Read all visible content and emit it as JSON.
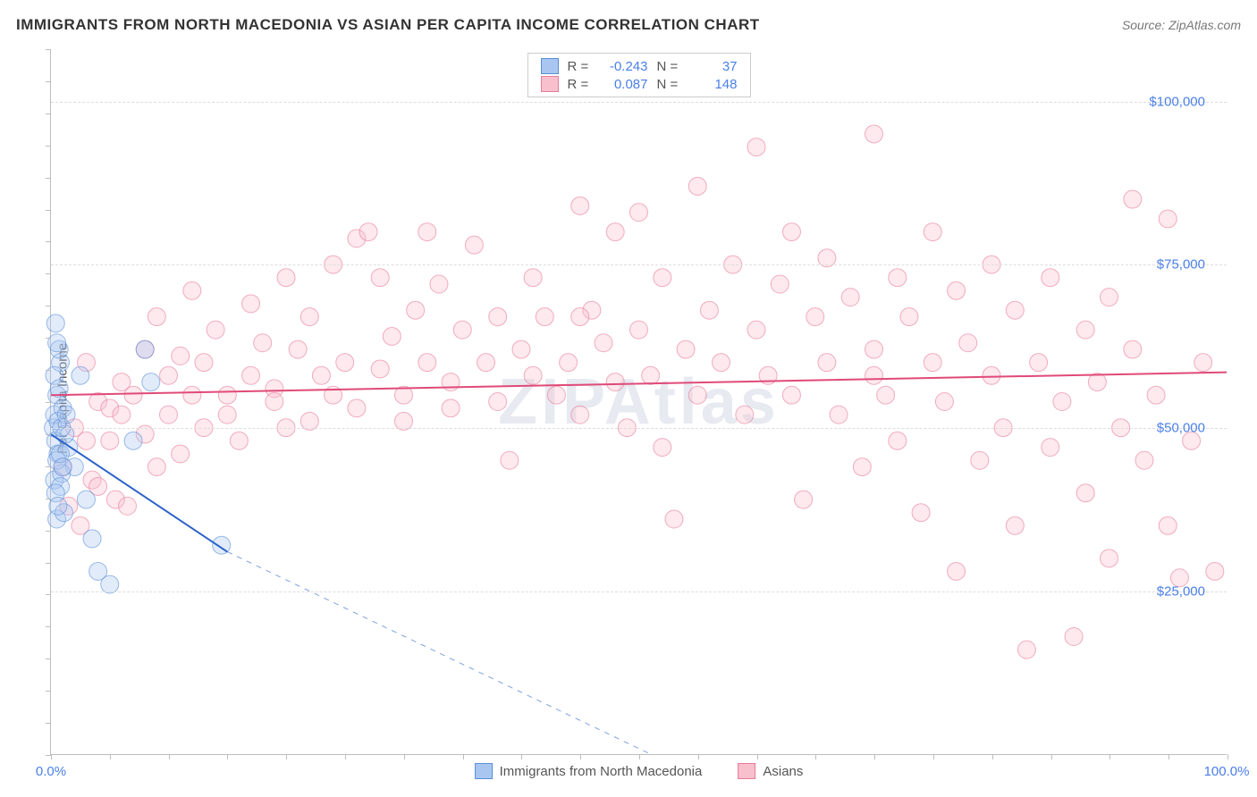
{
  "header": {
    "title": "IMMIGRANTS FROM NORTH MACEDONIA VS ASIAN PER CAPITA INCOME CORRELATION CHART",
    "source_prefix": "Source: ",
    "source_name": "ZipAtlas.com"
  },
  "watermark": "ZIPAtlas",
  "chart": {
    "type": "scatter",
    "ylabel": "Per Capita Income",
    "xlim": [
      0,
      100
    ],
    "ylim": [
      0,
      108000
    ],
    "xtick_labels": {
      "min": "0.0%",
      "max": "100.0%"
    },
    "ytick_positions": [
      25000,
      50000,
      75000,
      100000
    ],
    "ytick_labels": [
      "$25,000",
      "$50,000",
      "$75,000",
      "$100,000"
    ],
    "xtick_minor_count": 20,
    "ytick_minor_count": 22,
    "grid_color": "#dddddd",
    "axis_color": "#bdbdbd",
    "tick_label_color": "#4a7fe8",
    "label_color": "#555555",
    "background_color": "#ffffff",
    "marker_radius": 10,
    "marker_opacity": 0.35,
    "series": [
      {
        "id": "macedonia",
        "label": "Immigrants from North Macedonia",
        "color_fill": "#a8c6f0",
        "color_stroke": "#5a8fd8",
        "R": "-0.243",
        "N": "37",
        "trend": {
          "x1": 0,
          "y1": 49000,
          "x2": 15,
          "y2": 31000,
          "x_dash_to": 51,
          "y_dash_to": 0,
          "stroke": "#2a62c9",
          "width": 2
        },
        "points": [
          [
            0.2,
            50000
          ],
          [
            0.3,
            52000
          ],
          [
            0.4,
            48000
          ],
          [
            0.5,
            55000
          ],
          [
            0.6,
            46000
          ],
          [
            0.8,
            60000
          ],
          [
            0.3,
            42000
          ],
          [
            1.0,
            53000
          ],
          [
            1.5,
            47000
          ],
          [
            0.7,
            62000
          ],
          [
            0.4,
            66000
          ],
          [
            0.5,
            36000
          ],
          [
            2.0,
            44000
          ],
          [
            0.9,
            43000
          ],
          [
            0.6,
            51000
          ],
          [
            1.2,
            49000
          ],
          [
            0.8,
            41000
          ],
          [
            3.0,
            39000
          ],
          [
            0.5,
            45000
          ],
          [
            2.5,
            58000
          ],
          [
            4.0,
            28000
          ],
          [
            5.0,
            26000
          ],
          [
            3.5,
            33000
          ],
          [
            8.5,
            57000
          ],
          [
            8.0,
            62000
          ],
          [
            7.0,
            48000
          ],
          [
            0.3,
            58000
          ],
          [
            0.4,
            40000
          ],
          [
            1.1,
            37000
          ],
          [
            0.7,
            56000
          ],
          [
            0.9,
            50000
          ],
          [
            1.3,
            52000
          ],
          [
            14.5,
            32000
          ],
          [
            0.6,
            38000
          ],
          [
            0.5,
            63000
          ],
          [
            0.8,
            46000
          ],
          [
            1.0,
            44000
          ]
        ]
      },
      {
        "id": "asians",
        "label": "Asians",
        "color_fill": "#f8c0cd",
        "color_stroke": "#e87a9a",
        "R": "0.087",
        "N": "148",
        "trend": {
          "x1": 0,
          "y1": 55000,
          "x2": 100,
          "y2": 58500,
          "stroke": "#e04a78",
          "width": 2
        },
        "points": [
          [
            1,
            44000
          ],
          [
            1.5,
            38000
          ],
          [
            2,
            50000
          ],
          [
            2.5,
            35000
          ],
          [
            3,
            48000
          ],
          [
            3,
            60000
          ],
          [
            3.5,
            42000
          ],
          [
            4,
            54000
          ],
          [
            4,
            41000
          ],
          [
            5,
            53000
          ],
          [
            5,
            48000
          ],
          [
            5.5,
            39000
          ],
          [
            6,
            57000
          ],
          [
            6,
            52000
          ],
          [
            6.5,
            38000
          ],
          [
            7,
            55000
          ],
          [
            8,
            49000
          ],
          [
            8,
            62000
          ],
          [
            9,
            44000
          ],
          [
            9,
            67000
          ],
          [
            10,
            52000
          ],
          [
            10,
            58000
          ],
          [
            11,
            61000
          ],
          [
            11,
            46000
          ],
          [
            12,
            55000
          ],
          [
            12,
            71000
          ],
          [
            13,
            50000
          ],
          [
            13,
            60000
          ],
          [
            14,
            65000
          ],
          [
            15,
            55000
          ],
          [
            15,
            52000
          ],
          [
            16,
            48000
          ],
          [
            17,
            69000
          ],
          [
            17,
            58000
          ],
          [
            18,
            63000
          ],
          [
            19,
            56000
          ],
          [
            19,
            54000
          ],
          [
            20,
            73000
          ],
          [
            20,
            50000
          ],
          [
            21,
            62000
          ],
          [
            22,
            67000
          ],
          [
            22,
            51000
          ],
          [
            23,
            58000
          ],
          [
            24,
            55000
          ],
          [
            24,
            75000
          ],
          [
            25,
            60000
          ],
          [
            26,
            53000
          ],
          [
            26,
            79000
          ],
          [
            27,
            80000
          ],
          [
            28,
            59000
          ],
          [
            28,
            73000
          ],
          [
            29,
            64000
          ],
          [
            30,
            55000
          ],
          [
            30,
            51000
          ],
          [
            31,
            68000
          ],
          [
            32,
            60000
          ],
          [
            32,
            80000
          ],
          [
            33,
            72000
          ],
          [
            34,
            57000
          ],
          [
            34,
            53000
          ],
          [
            35,
            65000
          ],
          [
            36,
            78000
          ],
          [
            37,
            60000
          ],
          [
            38,
            67000
          ],
          [
            38,
            54000
          ],
          [
            39,
            45000
          ],
          [
            40,
            62000
          ],
          [
            41,
            73000
          ],
          [
            41,
            58000
          ],
          [
            42,
            67000
          ],
          [
            43,
            55000
          ],
          [
            44,
            60000
          ],
          [
            45,
            84000
          ],
          [
            45,
            52000
          ],
          [
            46,
            68000
          ],
          [
            47,
            63000
          ],
          [
            48,
            57000
          ],
          [
            48,
            80000
          ],
          [
            49,
            50000
          ],
          [
            50,
            65000
          ],
          [
            50,
            83000
          ],
          [
            51,
            58000
          ],
          [
            52,
            47000
          ],
          [
            52,
            73000
          ],
          [
            53,
            36000
          ],
          [
            54,
            62000
          ],
          [
            55,
            87000
          ],
          [
            55,
            55000
          ],
          [
            56,
            68000
          ],
          [
            57,
            60000
          ],
          [
            58,
            75000
          ],
          [
            59,
            52000
          ],
          [
            60,
            65000
          ],
          [
            60,
            93000
          ],
          [
            61,
            58000
          ],
          [
            62,
            72000
          ],
          [
            63,
            55000
          ],
          [
            63,
            80000
          ],
          [
            64,
            39000
          ],
          [
            65,
            67000
          ],
          [
            66,
            60000
          ],
          [
            66,
            76000
          ],
          [
            67,
            52000
          ],
          [
            68,
            70000
          ],
          [
            69,
            44000
          ],
          [
            70,
            62000
          ],
          [
            70,
            95000
          ],
          [
            71,
            55000
          ],
          [
            72,
            73000
          ],
          [
            72,
            48000
          ],
          [
            73,
            67000
          ],
          [
            74,
            37000
          ],
          [
            75,
            60000
          ],
          [
            75,
            80000
          ],
          [
            76,
            54000
          ],
          [
            77,
            71000
          ],
          [
            77,
            28000
          ],
          [
            78,
            63000
          ],
          [
            79,
            45000
          ],
          [
            80,
            58000
          ],
          [
            80,
            75000
          ],
          [
            81,
            50000
          ],
          [
            82,
            68000
          ],
          [
            82,
            35000
          ],
          [
            83,
            16000
          ],
          [
            84,
            60000
          ],
          [
            85,
            47000
          ],
          [
            85,
            73000
          ],
          [
            86,
            54000
          ],
          [
            87,
            18000
          ],
          [
            88,
            65000
          ],
          [
            88,
            40000
          ],
          [
            89,
            57000
          ],
          [
            90,
            30000
          ],
          [
            90,
            70000
          ],
          [
            91,
            50000
          ],
          [
            92,
            62000
          ],
          [
            92,
            85000
          ],
          [
            93,
            45000
          ],
          [
            94,
            55000
          ],
          [
            95,
            35000
          ],
          [
            96,
            27000
          ],
          [
            97,
            48000
          ],
          [
            98,
            60000
          ],
          [
            99,
            28000
          ],
          [
            95,
            82000
          ],
          [
            70,
            58000
          ],
          [
            45,
            67000
          ]
        ]
      }
    ]
  },
  "legend": {
    "R_label": "R =",
    "N_label": "N ="
  }
}
